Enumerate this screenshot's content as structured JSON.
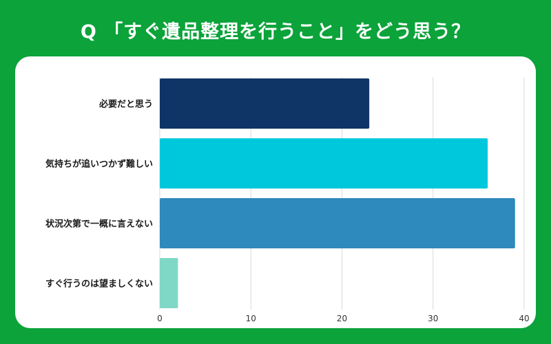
{
  "chart_data": {
    "type": "bar",
    "orientation": "horizontal",
    "title": "Q 「すぐ遺品整理を行うこと」をどう思う？",
    "categories": [
      "必要だと思う",
      "気持ちが追いつかず難しい",
      "状況次第で一概に言えない",
      "すぐ行うのは望ましくない"
    ],
    "values": [
      23,
      36,
      39,
      2
    ],
    "colors": [
      "#0e3566",
      "#00c8dc",
      "#2e89bc",
      "#7fd8c6"
    ],
    "xlim": [
      0,
      40
    ],
    "xticks": [
      0,
      10,
      20,
      30,
      40
    ],
    "grid": true,
    "legend": "none",
    "xlabel": "",
    "ylabel": ""
  },
  "theme": {
    "background": "#0ba33a",
    "panel": "#ffffff",
    "gridline": "#d9d9d9"
  }
}
